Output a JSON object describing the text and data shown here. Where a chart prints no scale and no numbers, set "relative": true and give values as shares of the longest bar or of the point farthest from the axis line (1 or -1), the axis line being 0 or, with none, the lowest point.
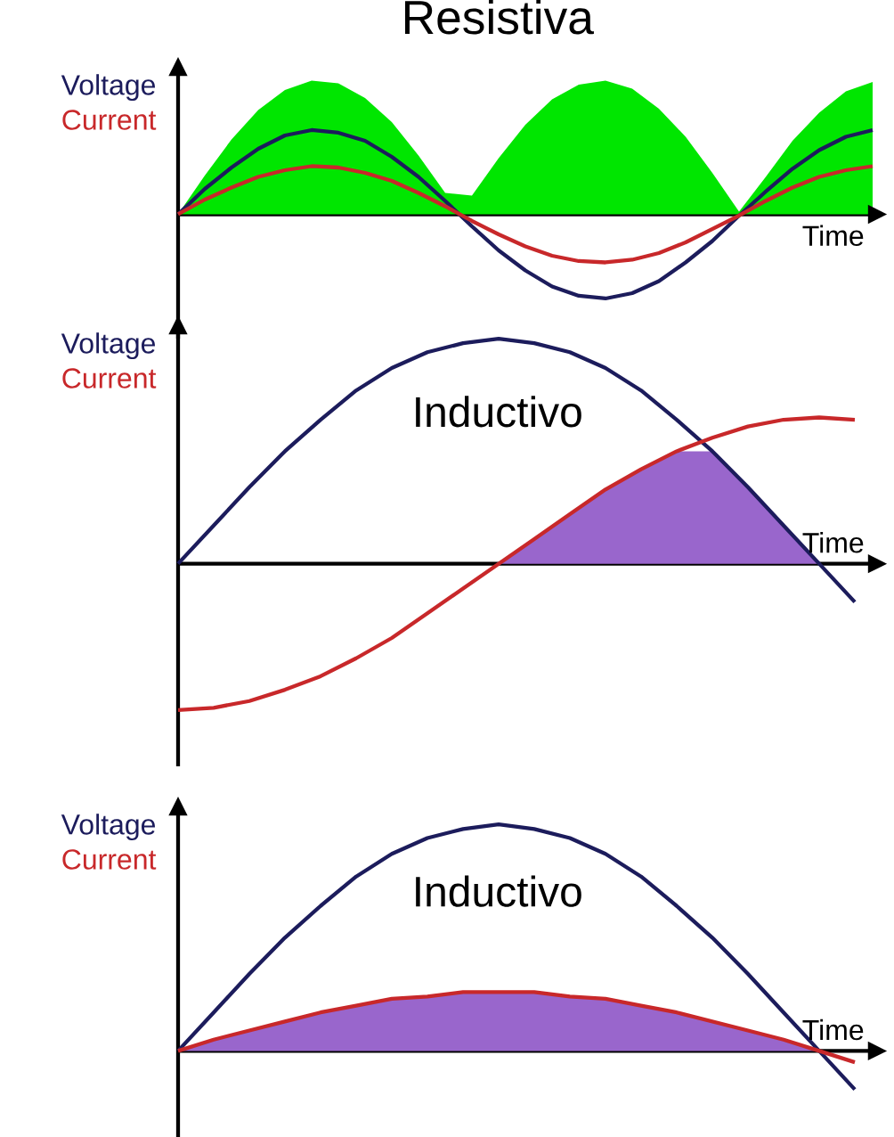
{
  "chart_data": [
    {
      "type": "line",
      "title": "Resistiva",
      "xlabel": "Time",
      "relative": true,
      "categories": [
        null,
        null,
        null,
        null,
        null,
        null,
        null,
        null,
        null,
        null,
        null,
        null,
        null,
        null,
        null,
        null,
        null,
        null,
        null,
        null,
        null,
        null,
        null,
        null,
        null,
        null,
        null
      ],
      "series": [
        {
          "type": "area",
          "color": "#00e600",
          "values": [
            0,
            0.29,
            0.56,
            0.78,
            0.93,
            1,
            0.98,
            0.87,
            0.69,
            0.44,
            0.16,
            0.14,
            0.42,
            0.67,
            0.86,
            0.97,
            1,
            0.94,
            0.79,
            0.58,
            0.31,
            0.02,
            0.28,
            0.55,
            0.76,
            0.92,
            0.99
          ]
        },
        {
          "name": "Voltage",
          "color": "#1c1c5c",
          "values": [
            0,
            0.19,
            0.35,
            0.49,
            0.59,
            0.63,
            0.61,
            0.55,
            0.43,
            0.28,
            0.1,
            -0.09,
            -0.27,
            -0.42,
            -0.54,
            -0.61,
            -0.63,
            -0.59,
            -0.5,
            -0.36,
            -0.2,
            -0.01,
            0.17,
            0.34,
            0.48,
            0.58,
            0.63
          ]
        },
        {
          "name": "Current",
          "color": "#c8282a",
          "values": [
            0,
            0.11,
            0.2,
            0.28,
            0.33,
            0.36,
            0.35,
            0.31,
            0.25,
            0.16,
            0.06,
            -0.05,
            -0.15,
            -0.24,
            -0.31,
            -0.35,
            -0.36,
            -0.34,
            -0.29,
            -0.21,
            -0.11,
            -0.01,
            0.1,
            0.2,
            0.28,
            0.33,
            0.36
          ]
        }
      ]
    },
    {
      "type": "line",
      "title": "Inductivo",
      "xlabel": "Time",
      "relative": true,
      "categories": [
        null,
        null,
        null,
        null,
        null,
        null,
        null,
        null,
        null,
        null,
        null,
        null,
        null,
        null,
        null,
        null,
        null,
        null,
        null,
        null
      ],
      "series": [
        {
          "type": "area",
          "color": "#9966cc",
          "values": [
            null,
            null,
            null,
            null,
            null,
            null,
            null,
            null,
            null,
            0,
            0.11,
            0.22,
            0.33,
            0.42,
            0.5,
            0.5,
            0.34,
            0.17,
            0,
            null
          ]
        },
        {
          "name": "Voltage",
          "color": "#1c1c5c",
          "values": [
            0,
            0.17,
            0.34,
            0.5,
            0.64,
            0.77,
            0.87,
            0.94,
            0.98,
            1,
            0.98,
            0.94,
            0.87,
            0.77,
            0.64,
            0.5,
            0.34,
            0.17,
            0,
            -0.17
          ]
        },
        {
          "name": "Current",
          "color": "#c8282a",
          "values": [
            -0.65,
            -0.64,
            -0.61,
            -0.56,
            -0.5,
            -0.42,
            -0.33,
            -0.22,
            -0.11,
            0,
            0.11,
            0.22,
            0.33,
            0.42,
            0.5,
            0.56,
            0.61,
            0.64,
            0.65,
            0.64
          ]
        }
      ]
    },
    {
      "type": "line",
      "title": "Inductivo",
      "xlabel": "Time",
      "relative": true,
      "categories": [
        null,
        null,
        null,
        null,
        null,
        null,
        null,
        null,
        null,
        null,
        null,
        null,
        null,
        null,
        null,
        null,
        null,
        null,
        null,
        null
      ],
      "series": [
        {
          "type": "area",
          "color": "#9966cc",
          "values": [
            0,
            0.05,
            0.09,
            0.13,
            0.17,
            0.2,
            0.23,
            0.24,
            0.26,
            0.26,
            0.26,
            0.24,
            0.23,
            0.2,
            0.17,
            0.13,
            0.09,
            0.05,
            0,
            null
          ]
        },
        {
          "name": "Voltage",
          "color": "#1c1c5c",
          "values": [
            0,
            0.17,
            0.34,
            0.5,
            0.64,
            0.77,
            0.87,
            0.94,
            0.98,
            1,
            0.98,
            0.94,
            0.87,
            0.77,
            0.64,
            0.5,
            0.34,
            0.17,
            0,
            -0.17
          ]
        },
        {
          "name": "Current",
          "color": "#c8282a",
          "values": [
            0,
            0.05,
            0.09,
            0.13,
            0.17,
            0.2,
            0.23,
            0.24,
            0.26,
            0.26,
            0.26,
            0.24,
            0.23,
            0.2,
            0.17,
            0.13,
            0.09,
            0.05,
            0,
            -0.05
          ]
        }
      ]
    }
  ]
}
